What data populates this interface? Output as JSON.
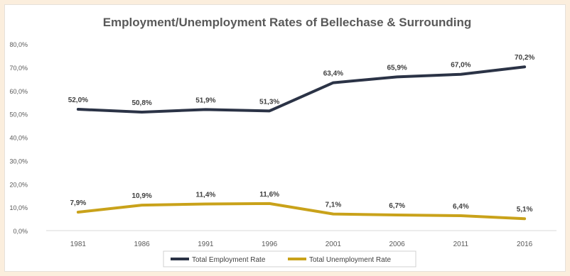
{
  "chart_data": {
    "type": "line",
    "title": "Employment/Unemployment Rates of Bellechase & Surrounding",
    "categories": [
      "1981",
      "1986",
      "1991",
      "1996",
      "2001",
      "2006",
      "2011",
      "2016"
    ],
    "series": [
      {
        "name": "Total Employment Rate",
        "color": "#2b3346",
        "values": [
          52.0,
          50.8,
          51.9,
          51.3,
          63.4,
          65.9,
          67.0,
          70.2
        ],
        "labels": [
          "52,0%",
          "50,8%",
          "51,9%",
          "51,3%",
          "63,4%",
          "65,9%",
          "67,0%",
          "70,2%"
        ]
      },
      {
        "name": "Total Unemployment Rate",
        "color": "#c9a21a",
        "values": [
          7.9,
          10.9,
          11.4,
          11.6,
          7.1,
          6.7,
          6.4,
          5.1
        ],
        "labels": [
          "7,9%",
          "10,9%",
          "11,4%",
          "11,6%",
          "7,1%",
          "6,7%",
          "6,4%",
          "5,1%"
        ]
      }
    ],
    "ylim": [
      0,
      80
    ],
    "yticks": [
      {
        "value": 0,
        "label": "0,0%"
      },
      {
        "value": 10,
        "label": "10,0%"
      },
      {
        "value": 20,
        "label": "20,0%"
      },
      {
        "value": 30,
        "label": "30,0%"
      },
      {
        "value": 40,
        "label": "40,0%"
      },
      {
        "value": 50,
        "label": "50,0%"
      },
      {
        "value": 60,
        "label": "60,0%"
      },
      {
        "value": 70,
        "label": "70,0%"
      },
      {
        "value": 80,
        "label": "80,0%"
      }
    ],
    "grid": false,
    "legend_position": "bottom"
  }
}
